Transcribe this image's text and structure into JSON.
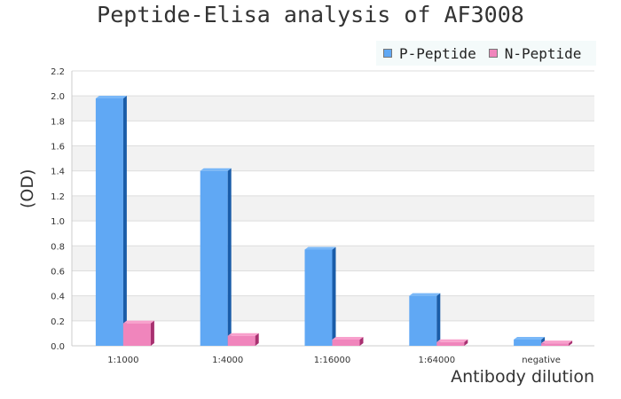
{
  "chart_data": {
    "type": "bar",
    "title": "Peptide-Elisa analysis of AF3008",
    "xlabel": "Antibody dilution",
    "ylabel": "(OD)",
    "categories": [
      "1:1000",
      "1:4000",
      "1:16000",
      "1:64000",
      "negative"
    ],
    "series": [
      {
        "name": "P-Peptide",
        "color": "#60a8f4",
        "values": [
          1.98,
          1.4,
          0.77,
          0.4,
          0.05
        ]
      },
      {
        "name": "N-Peptide",
        "color": "#f085bc",
        "values": [
          0.18,
          0.08,
          0.05,
          0.03,
          0.02
        ]
      }
    ],
    "ylim": [
      0,
      2.2
    ],
    "yticks": [
      "0.0",
      "0.2",
      "0.4",
      "0.6",
      "0.8",
      "1.0",
      "1.2",
      "1.4",
      "1.6",
      "1.8",
      "2.0",
      "2.2"
    ],
    "grid": true,
    "legend": "top-right"
  }
}
